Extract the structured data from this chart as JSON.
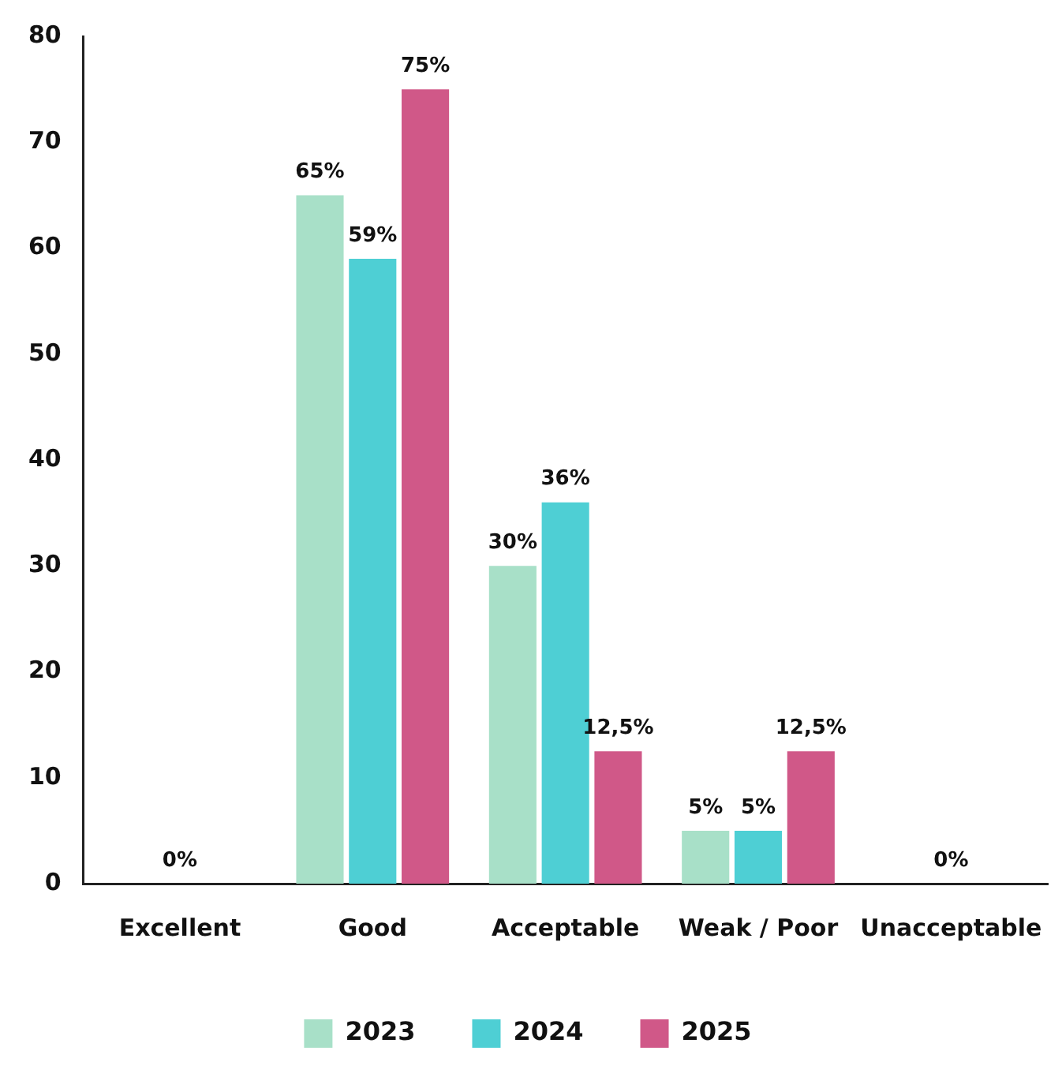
{
  "chart_data": {
    "type": "bar",
    "categories": [
      "Excellent",
      "Good",
      "Acceptable",
      "Weak / Poor",
      "Unacceptable"
    ],
    "series": [
      {
        "name": "2023",
        "color": "#a8e0c8",
        "values": [
          0,
          65,
          30,
          5,
          0
        ],
        "value_labels": [
          null,
          "65%",
          "30%",
          "5%",
          null
        ]
      },
      {
        "name": "2024",
        "color": "#4ecfd4",
        "values": [
          0,
          59,
          36,
          5,
          0
        ],
        "value_labels": [
          "0%",
          "59%",
          "36%",
          "5%",
          "0%"
        ]
      },
      {
        "name": "2025",
        "color": "#d05888",
        "values": [
          0,
          75,
          12.5,
          12.5,
          0
        ],
        "value_labels": [
          null,
          "75%",
          "12,5%",
          "12,5%",
          null
        ]
      }
    ],
    "ylim": [
      0,
      80
    ],
    "yticks": [
      0,
      10,
      20,
      30,
      40,
      50,
      60,
      70,
      80
    ],
    "grid": false,
    "legend": "bottom"
  }
}
